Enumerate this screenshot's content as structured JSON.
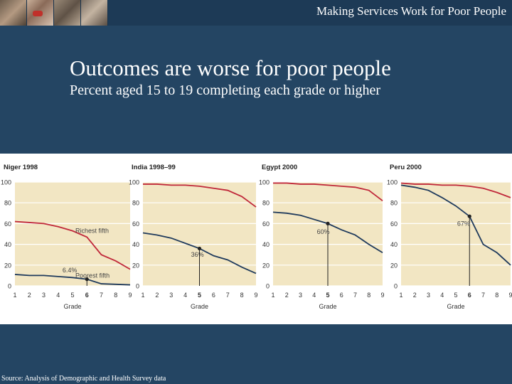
{
  "header": {
    "deck_title": "Making Services Work for Poor People"
  },
  "slide": {
    "title": "Outcomes are worse for poor people",
    "subtitle": "Percent aged 15 to 19 completing each grade or higher"
  },
  "footer": {
    "source": "Source: Analysis of Demographic and Health Survey data"
  },
  "colors": {
    "background": "#244563",
    "panel": "#f2e6c3",
    "rich": "#c0283a",
    "poor": "#1f3a5c",
    "grid": "#ffffff"
  },
  "chart_data": [
    {
      "type": "line",
      "title": "Niger 1998",
      "xlabel": "Grade",
      "x": [
        1,
        2,
        3,
        4,
        5,
        6,
        7,
        8,
        9
      ],
      "ylim": [
        0,
        100
      ],
      "yticks": [
        0,
        20,
        40,
        60,
        80,
        100
      ],
      "series": [
        {
          "role": "rich",
          "values": [
            62,
            61,
            60,
            57,
            53,
            47,
            30,
            24,
            16
          ]
        },
        {
          "role": "poor",
          "values": [
            11,
            10,
            10,
            9,
            8,
            6.4,
            2,
            1.5,
            1
          ]
        }
      ],
      "annotations": [
        {
          "text": "Richest fifth",
          "x": 5.2,
          "y": 51
        },
        {
          "text": "Poorest fifth",
          "x": 5.2,
          "y": 8
        },
        {
          "text": "6.4%",
          "x": 4.3,
          "y": 13
        }
      ],
      "marker": {
        "series": 1,
        "x": 6,
        "y": 6.4
      }
    },
    {
      "type": "line",
      "title": "India 1998–99",
      "xlabel": "Grade",
      "x": [
        1,
        2,
        3,
        4,
        5,
        6,
        7,
        8,
        9
      ],
      "ylim": [
        0,
        100
      ],
      "yticks": [
        0,
        20,
        40,
        60,
        80,
        100
      ],
      "series": [
        {
          "role": "rich",
          "values": [
            98,
            98,
            97,
            97,
            96,
            94,
            92,
            86,
            76
          ]
        },
        {
          "role": "poor",
          "values": [
            51,
            49,
            46,
            41,
            36,
            29,
            25,
            18,
            12
          ]
        }
      ],
      "annotations": [
        {
          "text": "36%",
          "x": 4.4,
          "y": 28
        }
      ],
      "marker": {
        "series": 1,
        "x": 5,
        "y": 36
      }
    },
    {
      "type": "line",
      "title": "Egypt 2000",
      "xlabel": "Grade",
      "x": [
        1,
        2,
        3,
        4,
        5,
        6,
        7,
        8,
        9
      ],
      "ylim": [
        0,
        100
      ],
      "yticks": [
        0,
        20,
        40,
        60,
        80,
        100
      ],
      "series": [
        {
          "role": "rich",
          "values": [
            99,
            99,
            98,
            98,
            97,
            96,
            95,
            92,
            82
          ]
        },
        {
          "role": "poor",
          "values": [
            71,
            70,
            68,
            64,
            60,
            54,
            49,
            40,
            32
          ]
        }
      ],
      "annotations": [
        {
          "text": "60%",
          "x": 4.2,
          "y": 50
        }
      ],
      "marker": {
        "series": 1,
        "x": 5,
        "y": 60
      }
    },
    {
      "type": "line",
      "title": "Peru 2000",
      "xlabel": "Grade",
      "x": [
        1,
        2,
        3,
        4,
        5,
        6,
        7,
        8,
        9
      ],
      "ylim": [
        0,
        100
      ],
      "yticks": [
        0,
        20,
        40,
        60,
        80,
        100
      ],
      "series": [
        {
          "role": "rich",
          "values": [
            99,
            98,
            98,
            97,
            97,
            96,
            94,
            90,
            85
          ]
        },
        {
          "role": "poor",
          "values": [
            97,
            95,
            92,
            85,
            77,
            67,
            40,
            32,
            20
          ]
        }
      ],
      "annotations": [
        {
          "text": "67%",
          "x": 5.1,
          "y": 58
        }
      ],
      "marker": {
        "series": 1,
        "x": 6,
        "y": 67
      }
    }
  ]
}
